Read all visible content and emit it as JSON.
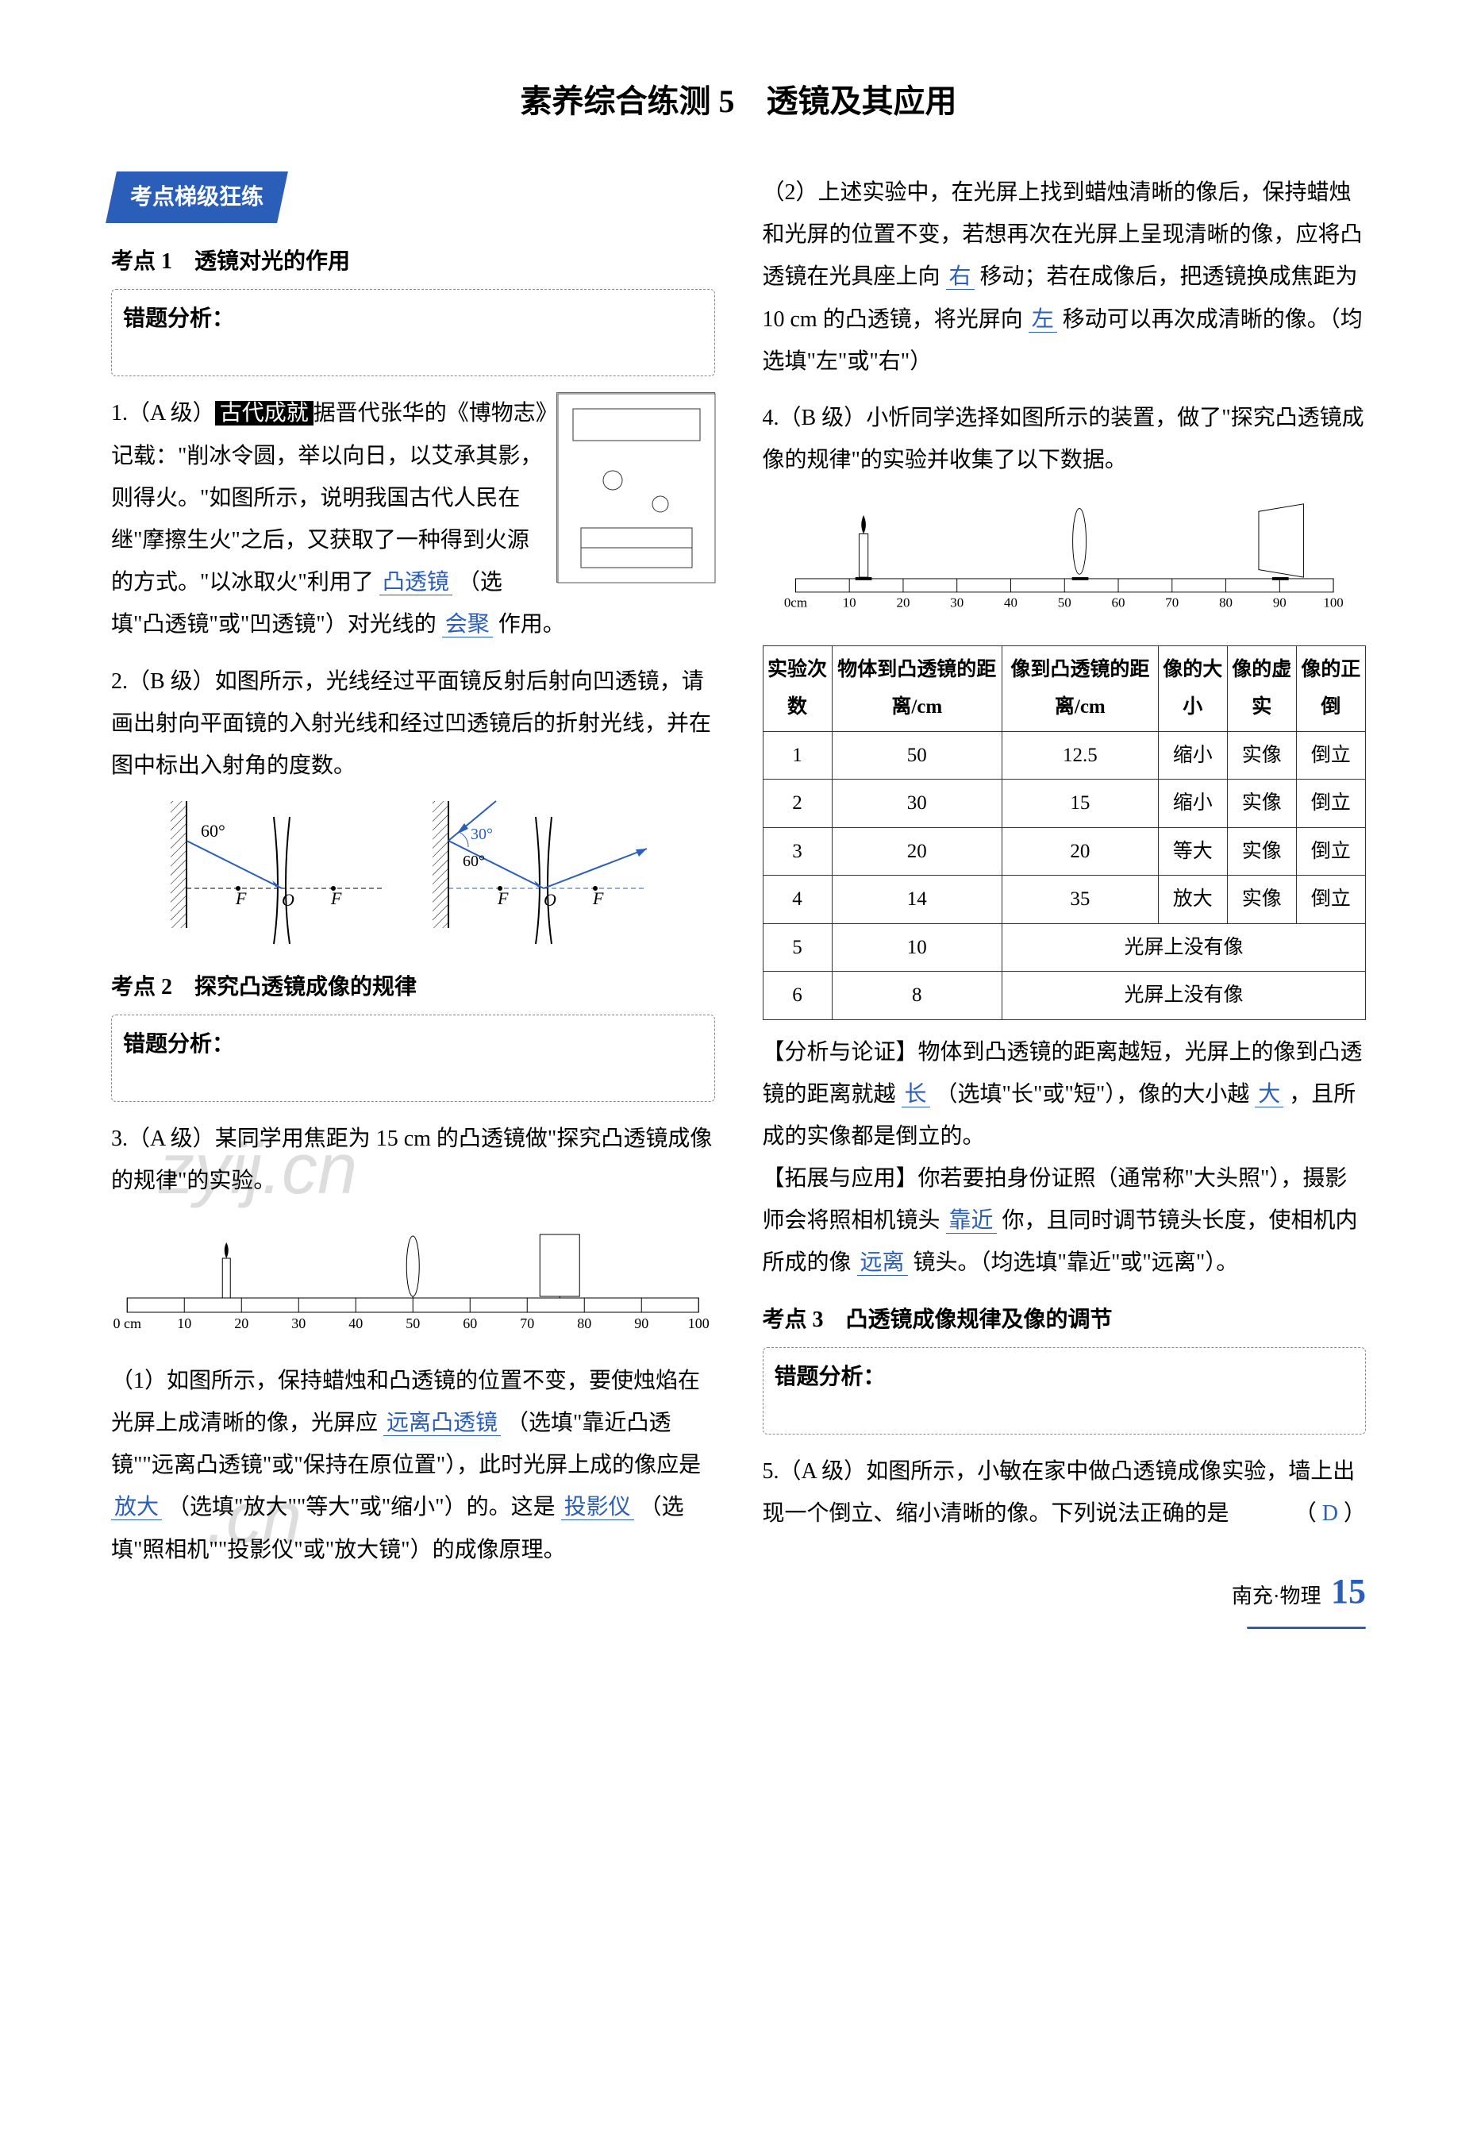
{
  "title": "素养综合练测 5　透镜及其应用",
  "banner": "考点梯级狂练",
  "kaodian1": "考点 1　透镜对光的作用",
  "kaodian2": "考点 2　探究凸透镜成像的规律",
  "kaodian3": "考点 3　凸透镜成像规律及像的调节",
  "err_label": "错题分析：",
  "q1": {
    "prefix": "1.（A 级）",
    "tag": "古代成就",
    "text_a": "据晋代张华的《博物志》记载：\"削冰令圆，举以向日，以艾承其影，则得火。\"如图所示，说明我国古代人民在继\"摩擦生火\"之后，又获取了一种得到火源的方式。\"以冰取火\"利用了",
    "ans1": "凸透镜",
    "text_b": "（选填\"凸透镜\"或\"凹透镜\"）对光线的",
    "ans2": "会聚",
    "text_c": "作用。"
  },
  "q2": {
    "prefix": "2.（B 级）",
    "text": "如图所示，光线经过平面镜反射后射向凹透镜，请画出射向平面镜的入射光线和经过凹透镜后的折射光线，并在图中标出入射角的度数。"
  },
  "q3": {
    "prefix": "3.（A 级）",
    "intro": "某同学用焦距为 15 cm 的凸透镜做\"探究凸透镜成像的规律\"的实验。",
    "p1_a": "（1）如图所示，保持蜡烛和凸透镜的位置不变，要使烛焰在光屏上成清晰的像，光屏应",
    "p1_ans1": "远离凸透镜",
    "p1_b": "（选填\"靠近凸透镜\"\"远离凸透镜\"或\"保持在原位置\"），此时光屏上成的像应是",
    "p1_ans2": "放大",
    "p1_c": "（选填\"放大\"\"等大\"或\"缩小\"）的。这是",
    "p1_ans3": "投影仪",
    "p1_d": "（选填\"照相机\"\"投影仪\"或\"放大镜\"）的成像原理。",
    "p2_a": "（2）上述实验中，在光屏上找到蜡烛清晰的像后，保持蜡烛和光屏的位置不变，若想再次在光屏上呈现清晰的像，应将凸透镜在光具座上向",
    "p2_ans1": "右",
    "p2_b": "移动；若在成像后，把透镜换成焦距为 10 cm 的凸透镜，将光屏向",
    "p2_ans2": "左",
    "p2_c": "移动可以再次成清晰的像。（均选填\"左\"或\"右\"）"
  },
  "q4": {
    "prefix": "4.（B 级）",
    "intro": "小忻同学选择如图所示的装置，做了\"探究凸透镜成像的规律\"的实验并收集了以下数据。",
    "ruler_labels": [
      "0cm",
      "10",
      "20",
      "30",
      "40",
      "50",
      "60",
      "70",
      "80",
      "90",
      "100"
    ],
    "table": {
      "headers": [
        "实验次数",
        "物体到凸透镜的距离/cm",
        "像到凸透镜的距离/cm",
        "像的大小",
        "像的虚实",
        "像的正倒"
      ],
      "rows": [
        [
          "1",
          "50",
          "12.5",
          "缩小",
          "实像",
          "倒立"
        ],
        [
          "2",
          "30",
          "15",
          "缩小",
          "实像",
          "倒立"
        ],
        [
          "3",
          "20",
          "20",
          "等大",
          "实像",
          "倒立"
        ],
        [
          "4",
          "14",
          "35",
          "放大",
          "实像",
          "倒立"
        ],
        [
          "5",
          "10",
          {
            "span": 4,
            "text": "光屏上没有像"
          }
        ],
        [
          "6",
          "8",
          {
            "span": 4,
            "text": "光屏上没有像"
          }
        ]
      ]
    },
    "analysis_label": "【分析与论证】",
    "analysis_a": "物体到凸透镜的距离越短，光屏上的像到凸透镜的距离就越",
    "analysis_ans1": "长",
    "analysis_b": "（选填\"长\"或\"短\"），像的大小越",
    "analysis_ans2": "大",
    "analysis_c": "，且所成的实像都是倒立的。",
    "ext_label": "【拓展与应用】",
    "ext_a": "你若要拍身份证照（通常称\"大头照\"），摄影师会将照相机镜头",
    "ext_ans1": "靠近",
    "ext_b": "你，且同时调节镜头长度，使相机内所成的像",
    "ext_ans2": "远离",
    "ext_c": "镜头。（均选填\"靠近\"或\"远离\"）。"
  },
  "q5": {
    "prefix": "5.（A 级）",
    "text": "如图所示，小敏在家中做凸透镜成像实验，墙上出现一个倒立、缩小清晰的像。下列说法正确的是",
    "paren_open": "（",
    "ans": "D",
    "paren_close": "）"
  },
  "bench_labels": [
    "0 cm",
    "10",
    "20",
    "30",
    "40",
    "50",
    "60",
    "70",
    "80",
    "90",
    "100"
  ],
  "footer": {
    "text": "南充·物理",
    "page": "15"
  },
  "colors": {
    "accent": "#2a5eb8",
    "answer": "#2a5eb8",
    "text": "#000000"
  },
  "diagram2": {
    "angle_left": "60°",
    "angle_right": "30°",
    "F": "F",
    "O": "O"
  }
}
